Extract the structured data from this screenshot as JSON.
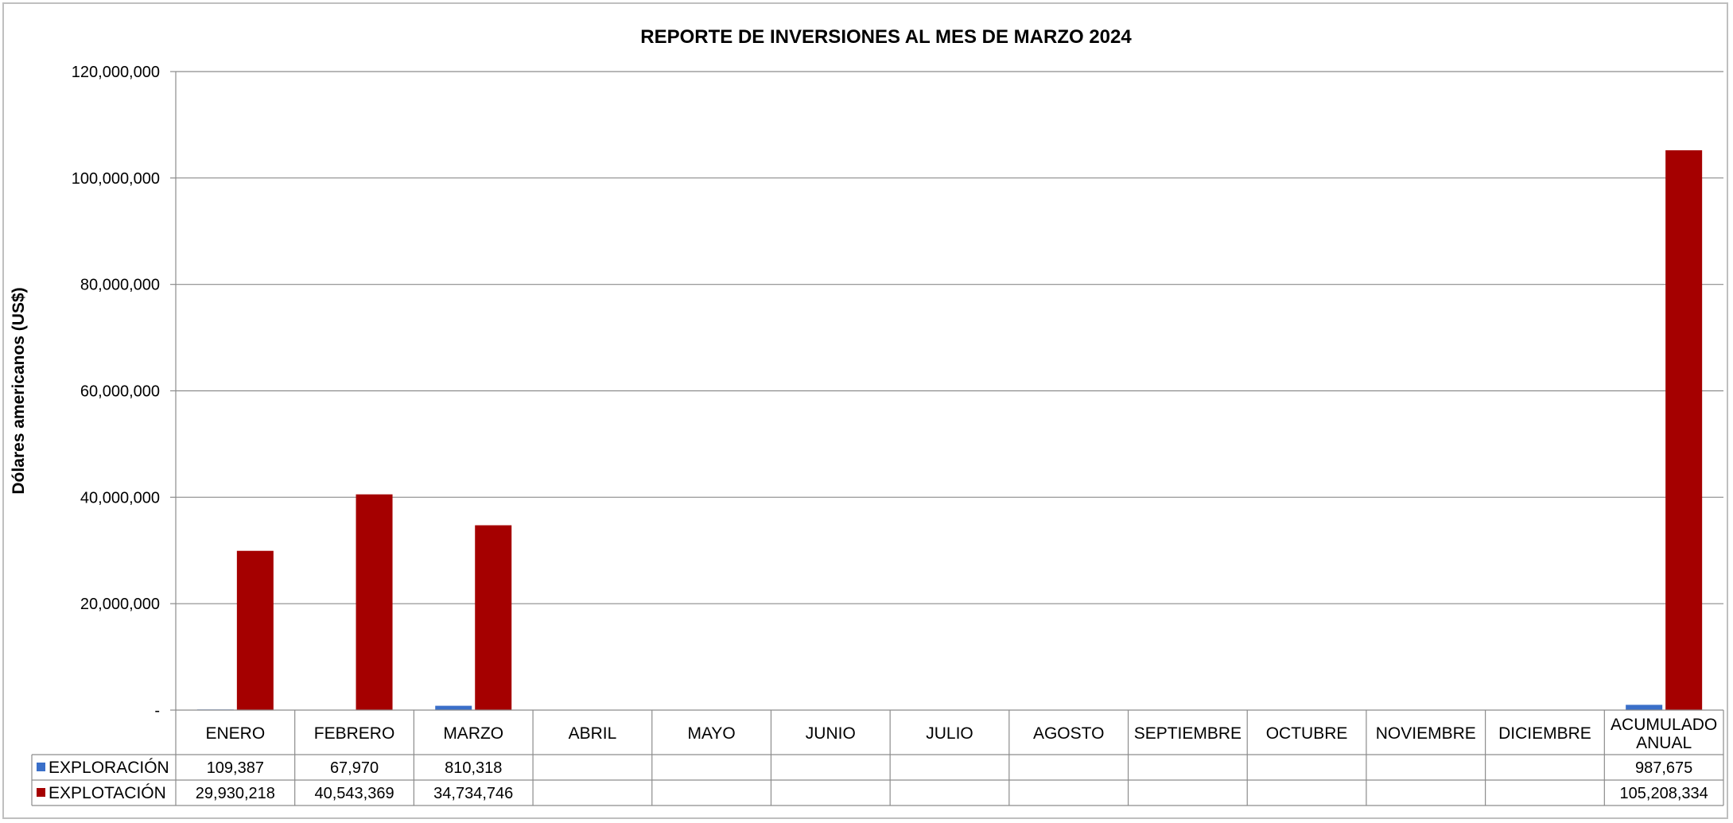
{
  "chart_data": {
    "type": "bar",
    "title": "REPORTE DE INVERSIONES AL MES DE MARZO 2024",
    "xlabel": "",
    "ylabel": "Dólares americanos (US$)",
    "ylim": [
      0,
      120000000
    ],
    "yticks": [
      {
        "value": 0,
        "label": "-"
      },
      {
        "value": 20000000,
        "label": "20,000,000"
      },
      {
        "value": 40000000,
        "label": "40,000,000"
      },
      {
        "value": 60000000,
        "label": "60,000,000"
      },
      {
        "value": 80000000,
        "label": "80,000,000"
      },
      {
        "value": 100000000,
        "label": "100,000,000"
      },
      {
        "value": 120000000,
        "label": "120,000,000"
      }
    ],
    "grid": true,
    "legend": "data-table",
    "categories": [
      [
        "ENERO"
      ],
      [
        "FEBRERO"
      ],
      [
        "MARZO"
      ],
      [
        "ABRIL"
      ],
      [
        "MAYO"
      ],
      [
        "JUNIO"
      ],
      [
        "JULIO"
      ],
      [
        "AGOSTO"
      ],
      [
        "SEPTIEMBRE"
      ],
      [
        "OCTUBRE"
      ],
      [
        "NOVIEMBRE"
      ],
      [
        "DICIEMBRE"
      ],
      [
        "ACUMULADO",
        "ANUAL"
      ]
    ],
    "series": [
      {
        "name": "EXPLORACIÓN",
        "color": "#3a6fc9",
        "values": [
          109387,
          67970,
          810318,
          null,
          null,
          null,
          null,
          null,
          null,
          null,
          null,
          null,
          987675
        ],
        "labels": [
          "109,387",
          "67,970",
          "810,318",
          "",
          "",
          "",
          "",
          "",
          "",
          "",
          "",
          "",
          "987,675"
        ]
      },
      {
        "name": "EXPLOTACIÓN",
        "color": "#a50000",
        "values": [
          29930218,
          40543369,
          34734746,
          null,
          null,
          null,
          null,
          null,
          null,
          null,
          null,
          null,
          105208334
        ],
        "labels": [
          "29,930,218",
          "40,543,369",
          "34,734,746",
          "",
          "",
          "",
          "",
          "",
          "",
          "",
          "",
          "",
          "105,208,334"
        ]
      }
    ]
  }
}
